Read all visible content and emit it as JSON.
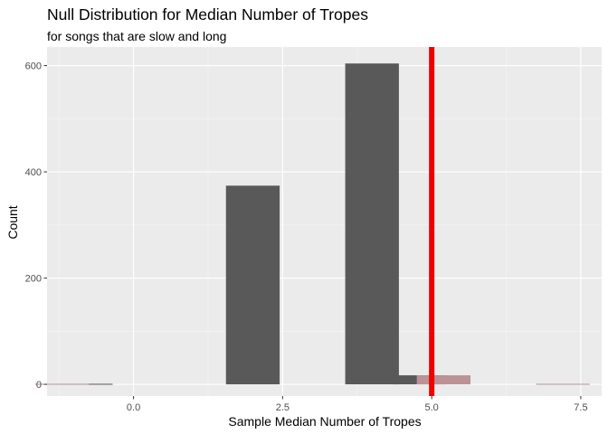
{
  "chart_data": {
    "type": "bar",
    "title": "Null Distribution for Median Number of Tropes",
    "subtitle": "for songs that are slow and long",
    "xlabel": "Sample Median Number of Tropes",
    "ylabel": "Count",
    "xlim": [
      -1.45,
      7.85
    ],
    "ylim": [
      -22,
      635
    ],
    "x_ticks": [
      0.0,
      2.5,
      5.0,
      7.5
    ],
    "x_tick_labels": [
      "0.0",
      "2.5",
      "5.0",
      "7.5"
    ],
    "y_ticks": [
      0,
      200,
      400,
      600
    ],
    "y_tick_labels": [
      "0",
      "200",
      "400",
      "600"
    ],
    "bar_width": 0.9,
    "series": [
      {
        "color": "#595959",
        "bars": [
          {
            "x": -0.8,
            "value": 1
          },
          {
            "x": 2.0,
            "value": 374
          },
          {
            "x": 4.0,
            "value": 604
          },
          {
            "x": 4.8,
            "value": 17
          }
        ]
      },
      {
        "color": "#bc9297",
        "bars": [
          {
            "x": -1.2,
            "value": 1
          },
          {
            "x": 5.2,
            "value": 17
          },
          {
            "x": 7.2,
            "value": 1
          }
        ]
      }
    ],
    "reference_line": {
      "x": 5.0,
      "color": "#ee0000"
    },
    "grid": true,
    "legend": "none",
    "colors": {
      "panel": "#ebebeb",
      "grid_major": "#ffffff",
      "grid_minor": "#f5f5f5"
    }
  }
}
